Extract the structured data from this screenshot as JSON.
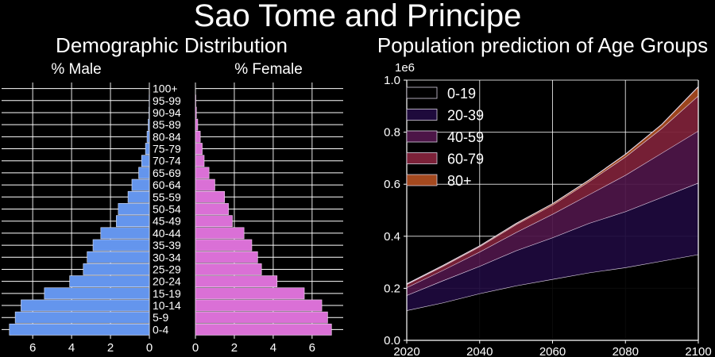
{
  "figure_title": "Sao Tome and Principe",
  "colors": {
    "background": "#000000",
    "male_bar": "#6495ED",
    "female_bar": "#DA70D6",
    "grid": "#ffffff",
    "area_0_19": "#000000",
    "area_20_39": "#1e0a3c",
    "area_40_59": "#4c1547",
    "area_60_79": "#7b2138",
    "area_80_plus": "#a4491f"
  },
  "chart_data": [
    {
      "type": "bar",
      "orientation": "horizontal",
      "title": "Demographic Distribution",
      "panels": [
        "% Male",
        "% Female"
      ],
      "categories": [
        "0-4",
        "5-9",
        "10-14",
        "15-19",
        "20-24",
        "25-29",
        "30-34",
        "35-39",
        "40-44",
        "45-49",
        "50-54",
        "55-59",
        "60-64",
        "65-69",
        "70-74",
        "75-79",
        "80-84",
        "85-89",
        "90-94",
        "95-99",
        "100+"
      ],
      "series": [
        {
          "name": "% Male",
          "values": [
            7.2,
            6.9,
            6.6,
            5.4,
            4.1,
            3.4,
            3.2,
            2.9,
            2.5,
            1.7,
            1.6,
            1.1,
            0.9,
            0.55,
            0.4,
            0.2,
            0.12,
            0.06,
            0.02,
            0.01,
            0.0
          ]
        },
        {
          "name": "% Female",
          "values": [
            7.0,
            6.8,
            6.5,
            5.6,
            4.2,
            3.4,
            3.2,
            2.9,
            2.5,
            1.9,
            1.7,
            1.5,
            1.0,
            0.7,
            0.45,
            0.35,
            0.25,
            0.12,
            0.05,
            0.02,
            0.0
          ]
        }
      ],
      "xticks": [
        "6",
        "4",
        "2",
        "0",
        "0",
        "2",
        "4",
        "6"
      ],
      "xlim": [
        0,
        7.6
      ],
      "grid": true
    },
    {
      "type": "area",
      "stacked": true,
      "title": "Population prediction of Age Groups",
      "xlabel": "",
      "ylabel": "",
      "y_scale_label": "1e6",
      "x": [
        2020,
        2030,
        2040,
        2050,
        2060,
        2070,
        2080,
        2090,
        2100
      ],
      "xlim": [
        2020,
        2100
      ],
      "ylim": [
        0,
        1.0
      ],
      "xticks": [
        "2020",
        "2040",
        "2060",
        "2080",
        "2100"
      ],
      "yticks": [
        "0.0",
        "0.2",
        "0.4",
        "0.6",
        "0.8",
        "1.0"
      ],
      "legend_position": "top-left",
      "grid": true,
      "series": [
        {
          "name": "0-19",
          "values": [
            0.115,
            0.145,
            0.18,
            0.21,
            0.235,
            0.26,
            0.28,
            0.305,
            0.33
          ]
        },
        {
          "name": "20-39",
          "values": [
            0.058,
            0.085,
            0.105,
            0.135,
            0.16,
            0.19,
            0.215,
            0.245,
            0.275
          ]
        },
        {
          "name": "40-59",
          "values": [
            0.03,
            0.04,
            0.055,
            0.07,
            0.09,
            0.11,
            0.14,
            0.17,
            0.2
          ]
        },
        {
          "name": "60-79",
          "values": [
            0.012,
            0.015,
            0.02,
            0.03,
            0.035,
            0.05,
            0.07,
            0.095,
            0.135
          ]
        },
        {
          "name": "80+",
          "values": [
            0.002,
            0.003,
            0.003,
            0.004,
            0.005,
            0.006,
            0.01,
            0.015,
            0.035
          ]
        }
      ]
    }
  ]
}
